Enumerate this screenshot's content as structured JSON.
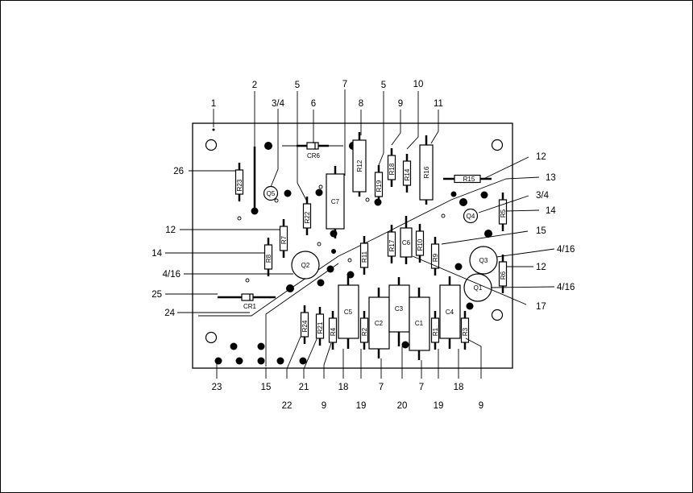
{
  "figure": {
    "colors": {
      "ink": "#000000",
      "paper": "#ffffff"
    },
    "callouts": [
      {
        "id": "c1",
        "text": "1"
      },
      {
        "id": "c2",
        "text": "2"
      },
      {
        "id": "c3",
        "text": "3/4"
      },
      {
        "id": "c4",
        "text": "5"
      },
      {
        "id": "c5",
        "text": "6"
      },
      {
        "id": "c6",
        "text": "7"
      },
      {
        "id": "c7",
        "text": "8"
      },
      {
        "id": "c8",
        "text": "5"
      },
      {
        "id": "c9",
        "text": "9"
      },
      {
        "id": "c10",
        "text": "10"
      },
      {
        "id": "c11",
        "text": "11"
      },
      {
        "id": "c12",
        "text": "12"
      },
      {
        "id": "c13",
        "text": "13"
      },
      {
        "id": "c14",
        "text": "3/4"
      },
      {
        "id": "c15",
        "text": "14"
      },
      {
        "id": "c16",
        "text": "15"
      },
      {
        "id": "c17",
        "text": "4/16"
      },
      {
        "id": "c18",
        "text": "12"
      },
      {
        "id": "c19",
        "text": "4/16"
      },
      {
        "id": "c20",
        "text": "17"
      },
      {
        "id": "c21",
        "text": "26"
      },
      {
        "id": "c22",
        "text": "12"
      },
      {
        "id": "c23",
        "text": "14"
      },
      {
        "id": "c24",
        "text": "4/16"
      },
      {
        "id": "c25",
        "text": "25"
      },
      {
        "id": "c26",
        "text": "24"
      },
      {
        "id": "c27",
        "text": "23"
      },
      {
        "id": "c28",
        "text": "15"
      },
      {
        "id": "c29",
        "text": "22"
      },
      {
        "id": "c30",
        "text": "21"
      },
      {
        "id": "c31",
        "text": "9"
      },
      {
        "id": "c32",
        "text": "18"
      },
      {
        "id": "c33",
        "text": "19"
      },
      {
        "id": "c34",
        "text": "7"
      },
      {
        "id": "c35",
        "text": "20"
      },
      {
        "id": "c36",
        "text": "7"
      },
      {
        "id": "c37",
        "text": "19"
      },
      {
        "id": "c38",
        "text": "18"
      },
      {
        "id": "c39",
        "text": "9"
      }
    ],
    "components": [
      {
        "id": "cr6",
        "text": "CR6"
      },
      {
        "id": "cr1",
        "text": "CR1"
      },
      {
        "id": "r23",
        "text": "R23"
      },
      {
        "id": "r22",
        "text": "R22"
      },
      {
        "id": "r7",
        "text": "R7"
      },
      {
        "id": "r8",
        "text": "R8"
      },
      {
        "id": "r12",
        "text": "R12"
      },
      {
        "id": "r19",
        "text": "R19"
      },
      {
        "id": "r18",
        "text": "R18"
      },
      {
        "id": "r14",
        "text": "R14"
      },
      {
        "id": "r16",
        "text": "R16"
      },
      {
        "id": "r15",
        "text": "R15"
      },
      {
        "id": "r5",
        "text": "R5"
      },
      {
        "id": "r6",
        "text": "R6"
      },
      {
        "id": "r11",
        "text": "R11"
      },
      {
        "id": "r17",
        "text": "R17"
      },
      {
        "id": "r10",
        "text": "R10"
      },
      {
        "id": "r9",
        "text": "R9"
      },
      {
        "id": "r24",
        "text": "R24"
      },
      {
        "id": "r21",
        "text": "R21"
      },
      {
        "id": "r4",
        "text": "R4"
      },
      {
        "id": "r2",
        "text": "R2"
      },
      {
        "id": "r1",
        "text": "R1"
      },
      {
        "id": "r3",
        "text": "R3"
      },
      {
        "id": "c7",
        "text": "C7"
      },
      {
        "id": "c6",
        "text": "C6"
      },
      {
        "id": "c5",
        "text": "C5"
      },
      {
        "id": "c2",
        "text": "C2"
      },
      {
        "id": "c3",
        "text": "C3"
      },
      {
        "id": "c1",
        "text": "C1"
      },
      {
        "id": "c4",
        "text": "C4"
      },
      {
        "id": "q1",
        "text": "Q1"
      },
      {
        "id": "q2",
        "text": "Q2"
      },
      {
        "id": "q3",
        "text": "Q3"
      },
      {
        "id": "q4",
        "text": "Q4"
      },
      {
        "id": "q5",
        "text": "Q5"
      }
    ]
  }
}
